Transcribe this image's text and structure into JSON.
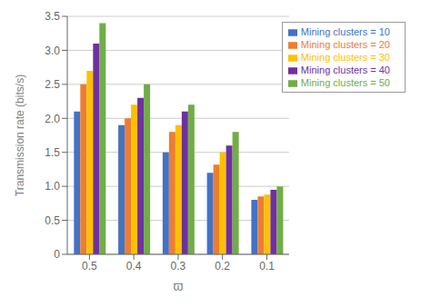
{
  "chart_data": {
    "type": "bar",
    "xlabel": "ϖ",
    "ylabel": "Transmission rate (bits/s)",
    "categories": [
      "0.5",
      "0.4",
      "0.3",
      "0.2",
      "0.1"
    ],
    "series": [
      {
        "name": "Mining clusters = 10",
        "color": "#4472C4",
        "values": [
          2.1,
          1.9,
          1.5,
          1.2,
          0.8
        ]
      },
      {
        "name": "Mining clusters = 20",
        "color": "#ED7D31",
        "values": [
          2.5,
          2.0,
          1.8,
          1.32,
          0.85
        ]
      },
      {
        "name": "Mining clusters = 30",
        "color": "#FFC000",
        "values": [
          2.7,
          2.2,
          1.9,
          1.5,
          0.88
        ]
      },
      {
        "name": "Mining clusters = 40",
        "color": "#7030A0",
        "values": [
          3.1,
          2.3,
          2.1,
          1.6,
          0.95
        ]
      },
      {
        "name": "Mining clusters = 50",
        "color": "#70AD47",
        "values": [
          3.4,
          2.5,
          2.2,
          1.8,
          1.0
        ]
      }
    ],
    "ylim": [
      0,
      3.5
    ],
    "yticks": [
      0,
      0.5,
      {
        "value": 1.0,
        "label": "1.0"
      },
      1.5,
      {
        "value": 2.0,
        "label": "2.0"
      },
      2.5,
      {
        "value": 3.0,
        "label": "3.0"
      },
      3.5
    ],
    "grid": true,
    "legend": "upper right"
  }
}
